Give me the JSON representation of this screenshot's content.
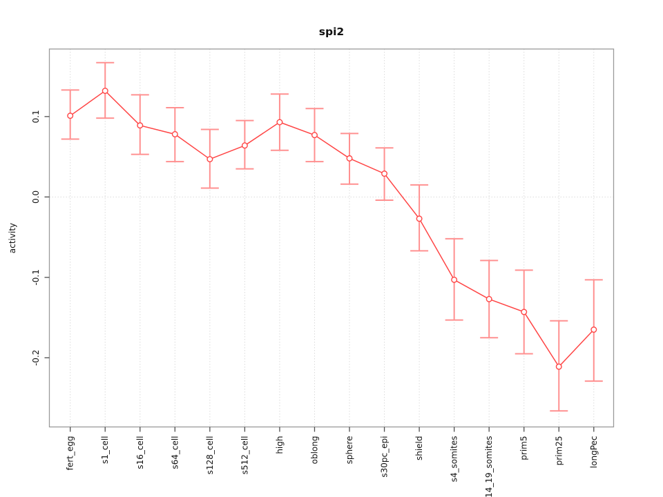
{
  "window": {
    "background": "#ffffff"
  },
  "chart_data": {
    "type": "line",
    "title": "spi2",
    "xlabel": "",
    "ylabel": "activity",
    "legend": "none",
    "categories": [
      "fert_egg",
      "s1_cell",
      "s16_cell",
      "s64_cell",
      "s128_cell",
      "s512_cell",
      "high",
      "oblong",
      "sphere",
      "s30pc_epi",
      "shield",
      "s4_somites",
      "s14_19_somites",
      "prim5",
      "prim25",
      "longPec"
    ],
    "series": [
      {
        "name": "spi2",
        "values": [
          0.101,
          0.132,
          0.089,
          0.078,
          0.047,
          0.064,
          0.093,
          0.077,
          0.048,
          0.029,
          -0.027,
          -0.103,
          -0.127,
          -0.143,
          -0.211,
          -0.165
        ],
        "lower": [
          0.072,
          0.098,
          0.053,
          0.044,
          0.011,
          0.035,
          0.058,
          0.044,
          0.016,
          -0.004,
          -0.067,
          -0.153,
          -0.175,
          -0.195,
          -0.266,
          -0.229
        ],
        "upper": [
          0.133,
          0.167,
          0.127,
          0.111,
          0.084,
          0.095,
          0.128,
          0.11,
          0.079,
          0.061,
          0.015,
          -0.052,
          -0.079,
          -0.091,
          -0.154,
          -0.103
        ]
      }
    ],
    "ylim": [
      -0.286,
      0.184
    ],
    "yticks": [
      0.1,
      0.0,
      -0.1,
      -0.2
    ],
    "ytick_labels": [
      "0.1",
      "0.0",
      "-0.1",
      "-0.2"
    ],
    "grid": {
      "vertical": "each-category",
      "horizontal_at": [
        0
      ],
      "style": "dotted"
    },
    "colors": {
      "line": "#ff4545",
      "error_bar": "#ff9090",
      "point_stroke": "#ff4545",
      "point_fill": "#ffffff",
      "grid": "#dadada",
      "box": "#999999",
      "tick": "#4d4d4d",
      "text": "#111111"
    }
  }
}
